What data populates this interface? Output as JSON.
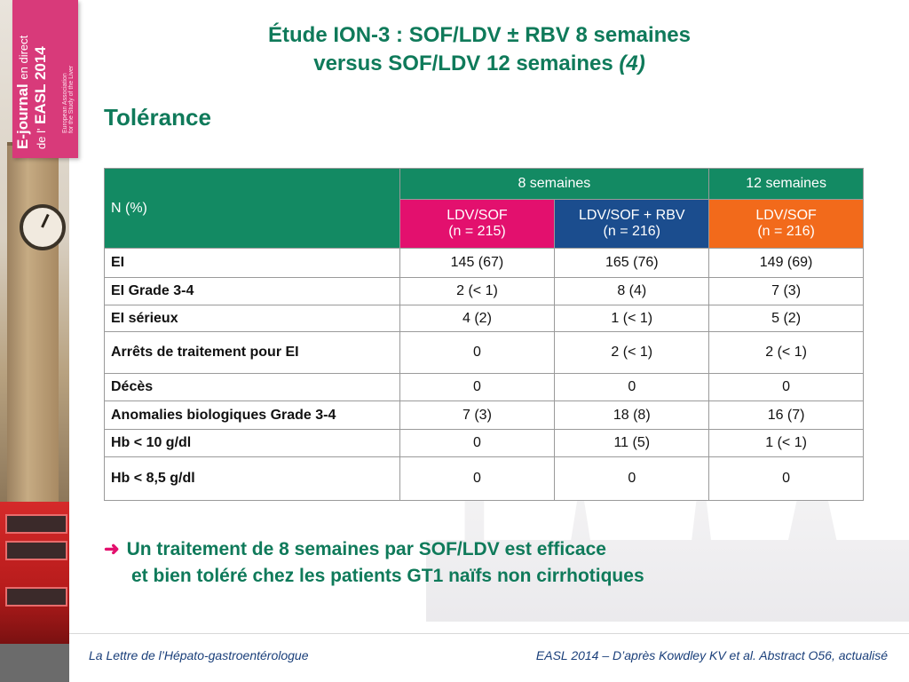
{
  "logo": {
    "main": "E-journal",
    "mid": "en direct",
    "prefix": "de l'",
    "event": "EASL 2014",
    "subtitle_line1": "European Association",
    "subtitle_line2": "for the Study of the Liver"
  },
  "title": {
    "line1": "Étude ION-3 : SOF/LDV ± RBV 8 semaines",
    "line2": "versus SOF/LDV 12 semaines",
    "ref": "(4)"
  },
  "section_title": "Tolérance",
  "table": {
    "corner": "N (%)",
    "group_8": "8 semaines",
    "group_12": "12 semaines",
    "arms": [
      {
        "name": "LDV/SOF",
        "n": "(n = 215)"
      },
      {
        "name": "LDV/SOF + RBV",
        "n": "(n = 216)"
      },
      {
        "name": "LDV/SOF",
        "n": "(n = 216)"
      }
    ],
    "rows": [
      {
        "label": "EI",
        "values": [
          "145 (67)",
          "165 (76)",
          "149 (69)"
        ]
      },
      {
        "label": "EI Grade 3-4",
        "values": [
          "2 (< 1)",
          "8 (4)",
          "7 (3)"
        ]
      },
      {
        "label": "EI sérieux",
        "values": [
          "4 (2)",
          "1 (< 1)",
          "5 (2)"
        ]
      },
      {
        "label": "Arrêts de traitement pour EI",
        "values": [
          "0",
          "2 (< 1)",
          "2 (< 1)"
        ]
      },
      {
        "label": "Décès",
        "values": [
          "0",
          "0",
          "0"
        ]
      },
      {
        "label": "Anomalies biologiques Grade 3-4",
        "values": [
          "7 (3)",
          "18 (8)",
          "16 (7)"
        ]
      },
      {
        "label": "Hb < 10 g/dl",
        "values": [
          "0",
          "11 (5)",
          "1 (< 1)"
        ]
      },
      {
        "label": "Hb < 8,5 g/dl",
        "values": [
          "0",
          "0",
          "0"
        ]
      }
    ]
  },
  "conclusion": {
    "arrow": "➜",
    "line1": "Un traitement de 8 semaines par SOF/LDV est efficace",
    "line2": "et bien toléré chez les patients GT1 naïfs non cirrhotiques"
  },
  "footer": {
    "left": "La Lettre de l’Hépato-gastroentérologue",
    "right": "EASL 2014 – D’après Kowdley KV et al. Abstract O56, actualisé"
  },
  "colors": {
    "title_green": "#0f7a5a",
    "header_green": "#138a63",
    "header_pink": "#e3106e",
    "header_blue": "#1b4d8e",
    "header_orange": "#f26a1b",
    "logo_pink": "#d83a7a"
  }
}
